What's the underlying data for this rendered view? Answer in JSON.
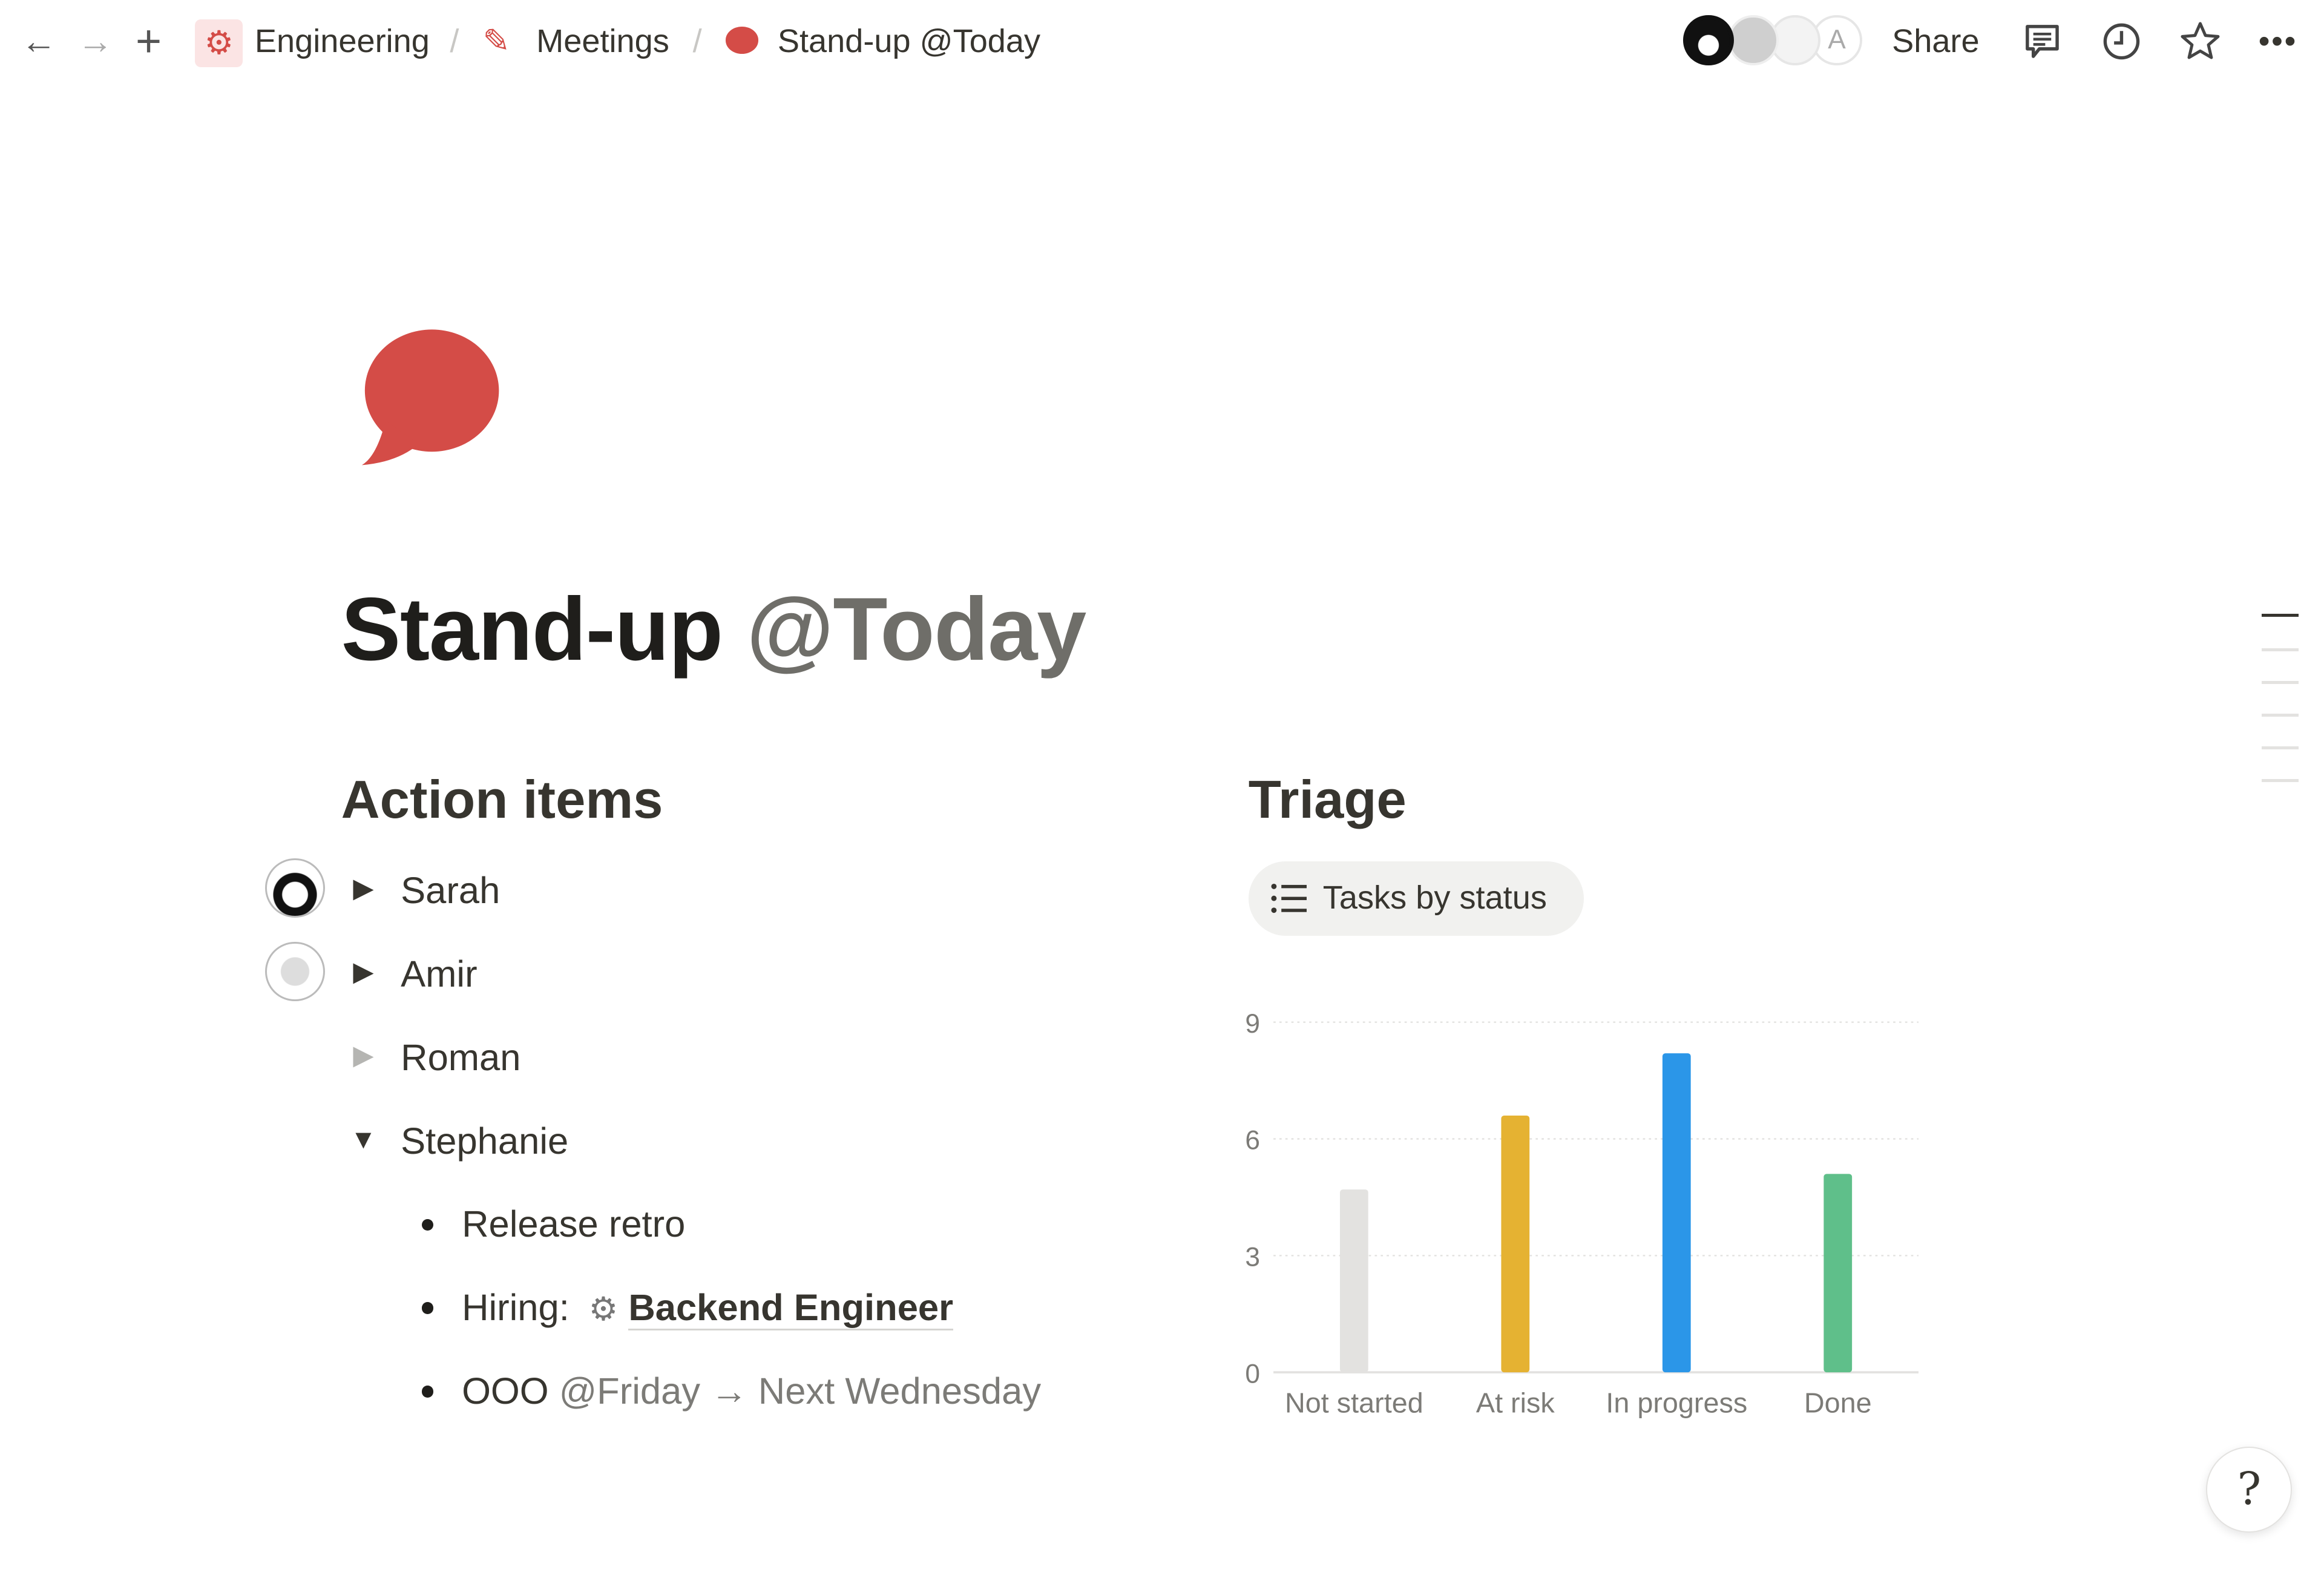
{
  "topbar": {
    "breadcrumbs": [
      {
        "label": "Engineering",
        "icon": "gear-icon"
      },
      {
        "label": "Meetings",
        "icon": "pencil-icon"
      },
      {
        "label": "Stand-up @Today",
        "icon": "speech-bubble-icon"
      }
    ],
    "separator": "/",
    "avatar_initial": "A",
    "share_label": "Share"
  },
  "page": {
    "title": "Stand-up",
    "title_mention": "@Today",
    "icon": "speech-bubble-icon",
    "icon_color": "#d44c47"
  },
  "action_items": {
    "heading": "Action items",
    "people": [
      {
        "name": "Sarah",
        "expanded": false
      },
      {
        "name": "Amir",
        "expanded": false
      },
      {
        "name": "Roman",
        "expanded": false
      },
      {
        "name": "Stephanie",
        "expanded": true
      }
    ],
    "stephanie_items": {
      "item1": "Release retro",
      "item2_label": "Hiring:",
      "item2_link": "Backend Engineer",
      "item3_label": "OOO",
      "item3_mention": "@Friday",
      "item3_arrow": "→",
      "item3_rest": "Next Wednesday"
    }
  },
  "triage": {
    "heading": "Triage",
    "view_label": "Tasks by status"
  },
  "chart_data": {
    "type": "bar",
    "categories": [
      "Not started",
      "At risk",
      "In progress",
      "Done"
    ],
    "values": [
      4.7,
      6.6,
      8.2,
      5.1
    ],
    "colors": [
      "#e3e2e0",
      "#e5b232",
      "#2b96e8",
      "#5fbf8a"
    ],
    "yticks": [
      "0",
      "3",
      "6",
      "9"
    ],
    "ylim": [
      0,
      9
    ],
    "grid": true
  }
}
